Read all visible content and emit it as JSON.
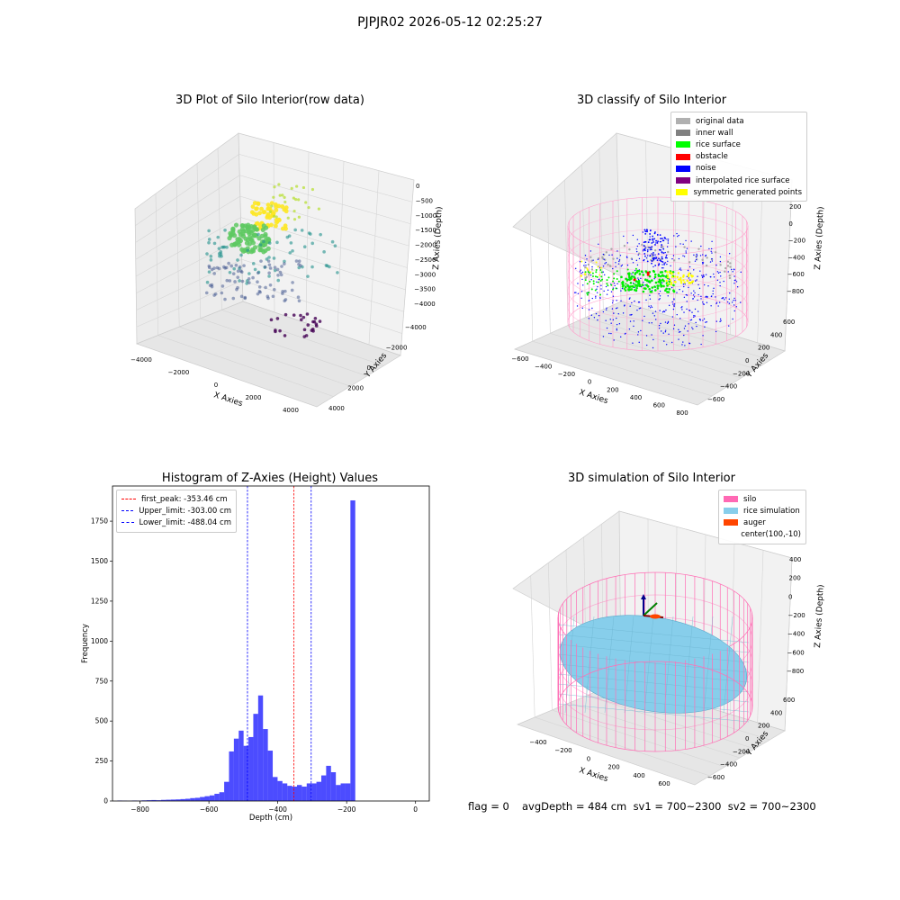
{
  "suptitle": "PJPJR02 2026-05-12 02:25:27",
  "chart_data": [
    {
      "type": "scatter",
      "title": "3D Plot of Silo Interior(row data)",
      "xlabel": "X Axies",
      "ylabel": "Y Axies",
      "zlabel": "Z Axies (Depth)",
      "xticks": [
        "−4000",
        "−2000",
        "0",
        "2000",
        "4000"
      ],
      "yticks": [
        "−4000",
        "−2000",
        "0",
        "2000",
        "4000"
      ],
      "zticks": [
        "0",
        "−500",
        "−1000",
        "−1500",
        "−2000",
        "−2500",
        "−3000",
        "−3500",
        "−4000"
      ],
      "colormap": "viridis (colored by depth)"
    },
    {
      "type": "scatter",
      "title": "3D classify of Silo Interior",
      "xlabel": "X Axies",
      "ylabel": "Y Axies",
      "zlabel": "Z Axies (Depth)",
      "xticks": [
        "−600",
        "−400",
        "−200",
        "0",
        "200",
        "400",
        "600",
        "800"
      ],
      "yticks": [
        "600",
        "400",
        "200",
        "0",
        "−200",
        "−400",
        "−600"
      ],
      "zticks": [
        "200",
        "0",
        "−200",
        "−400",
        "−600",
        "−800"
      ],
      "legend": [
        {
          "label": "original data",
          "color": "#b0b0b0"
        },
        {
          "label": "inner wall",
          "color": "#808080"
        },
        {
          "label": "rice surface",
          "color": "#00ff00"
        },
        {
          "label": "obstacle",
          "color": "#ff0000"
        },
        {
          "label": "noise",
          "color": "#0000ff"
        },
        {
          "label": "interpolated rice surface",
          "color": "#800080"
        },
        {
          "label": "symmetric generated points",
          "color": "#ffff00"
        }
      ]
    },
    {
      "type": "bar",
      "title": "Histogram of Z-Axies (Height) Values",
      "xlabel": "Depth (cm)",
      "ylabel": "Frequency",
      "xlim": [
        -880,
        40
      ],
      "ylim": [
        0,
        1970
      ],
      "xticks": [
        -800,
        -600,
        -400,
        -200,
        0
      ],
      "xtick_labels": [
        "−800",
        "−600",
        "−400",
        "−200",
        "0"
      ],
      "yticks": [
        0,
        250,
        500,
        750,
        1000,
        1250,
        1500,
        1750
      ],
      "bin_width": 14.1,
      "bin_start": -880,
      "values": [
        0,
        3,
        2,
        1,
        3,
        2,
        4,
        5,
        6,
        5,
        7,
        8,
        9,
        10,
        12,
        14,
        18,
        20,
        25,
        30,
        35,
        45,
        55,
        120,
        310,
        390,
        440,
        345,
        400,
        545,
        660,
        450,
        315,
        150,
        125,
        110,
        95,
        90,
        100,
        90,
        110,
        110,
        120,
        160,
        220,
        180,
        100,
        110,
        110,
        1880,
        0
      ],
      "color": "#0000ff",
      "vlines": [
        {
          "label": "first_peak: -353.46 cm",
          "x": -353.46,
          "color": "#ff0000"
        },
        {
          "label": "Upper_limit: -303.00 cm",
          "x": -303.0,
          "color": "#0000ff"
        },
        {
          "label": "Lower_limit: -488.04 cm",
          "x": -488.04,
          "color": "#0000ff"
        }
      ]
    },
    {
      "type": "surface",
      "title": "3D simulation of Silo Interior",
      "xlabel": "X Axies",
      "ylabel": "Y Axies",
      "zlabel": "Z Axies (Depth)",
      "xticks": [
        "−400",
        "−200",
        "0",
        "200",
        "400",
        "600"
      ],
      "yticks": [
        "600",
        "400",
        "200",
        "0",
        "−200",
        "−400",
        "−600"
      ],
      "zticks": [
        "400",
        "200",
        "0",
        "−200",
        "−400",
        "−600",
        "−800"
      ],
      "legend": [
        {
          "label": "silo",
          "color": "#ff69b4"
        },
        {
          "label": "rice simulation",
          "color": "#87ceeb"
        },
        {
          "label": "auger",
          "color": "#ff4500"
        },
        {
          "label": "center(100,-10)",
          "color": ""
        }
      ]
    }
  ],
  "footer": {
    "flag": "flag = 0",
    "avg": "avgDepth = 484 cm  sv1 = 700~2300  sv2 = 700~2300"
  }
}
